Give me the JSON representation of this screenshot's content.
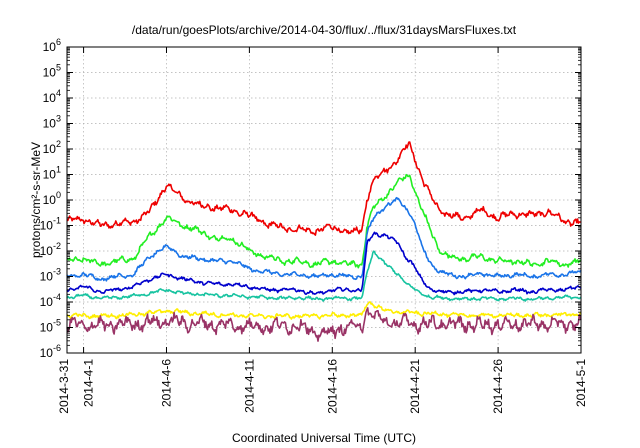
{
  "chart_data": {
    "type": "line",
    "title": "/data/run/goesPlots/archive/2014-04-30/flux/../flux/31daysMarsFluxes.txt",
    "xlabel": "Coordinated Universal Time (UTC)",
    "ylabel": "protons/cm²-s-sr-MeV",
    "yscale": "log",
    "ylim": [
      1e-06,
      1000000.0
    ],
    "xlim": [
      "2014-03-31",
      "2014-05-01"
    ],
    "grid": true,
    "yticks": [
      {
        "value": -6,
        "base": "10",
        "exp": "-6"
      },
      {
        "value": -5,
        "base": "10",
        "exp": "-5"
      },
      {
        "value": -4,
        "base": "10",
        "exp": "-4"
      },
      {
        "value": -3,
        "base": "10",
        "exp": "-3"
      },
      {
        "value": -2,
        "base": "10",
        "exp": "-2"
      },
      {
        "value": -1,
        "base": "10",
        "exp": "-1"
      },
      {
        "value": 0,
        "base": "10",
        "exp": "0"
      },
      {
        "value": 1,
        "base": "10",
        "exp": "1"
      },
      {
        "value": 2,
        "base": "10",
        "exp": "2"
      },
      {
        "value": 3,
        "base": "10",
        "exp": "3"
      },
      {
        "value": 4,
        "base": "10",
        "exp": "4"
      },
      {
        "value": 5,
        "base": "10",
        "exp": "5"
      },
      {
        "value": 6,
        "base": "10",
        "exp": "6"
      }
    ],
    "xticks": [
      {
        "day": 0,
        "label": "2014-3-31"
      },
      {
        "day": 1,
        "label": "2014-4-1"
      },
      {
        "day": 6,
        "label": "2014-4-6"
      },
      {
        "day": 11,
        "label": "2014-4-11"
      },
      {
        "day": 16,
        "label": "2014-4-16"
      },
      {
        "day": 21,
        "label": "2014-4-21"
      },
      {
        "day": 26,
        "label": "2014-4-26"
      },
      {
        "day": 31,
        "label": "2014-5-1"
      }
    ],
    "series": [
      {
        "color": "#ee0000",
        "noise": 0.13,
        "points": [
          [
            0,
            0.15
          ],
          [
            1,
            0.18
          ],
          [
            2,
            0.1
          ],
          [
            3,
            0.12
          ],
          [
            4,
            0.14
          ],
          [
            5,
            0.35
          ],
          [
            6,
            4.0
          ],
          [
            6.5,
            2.0
          ],
          [
            7,
            1.2
          ],
          [
            8,
            0.6
          ],
          [
            9,
            0.5
          ],
          [
            10,
            0.4
          ],
          [
            11,
            0.25
          ],
          [
            12,
            0.12
          ],
          [
            13,
            0.08
          ],
          [
            14,
            0.07
          ],
          [
            15,
            0.06
          ],
          [
            16,
            0.09
          ],
          [
            17,
            0.05
          ],
          [
            17.8,
            0.07
          ],
          [
            18.1,
            1.2
          ],
          [
            18.5,
            6.0
          ],
          [
            19.2,
            15
          ],
          [
            20,
            40
          ],
          [
            20.4,
            120
          ],
          [
            20.7,
            150
          ],
          [
            21,
            40
          ],
          [
            21.5,
            5.0
          ],
          [
            22,
            1.2
          ],
          [
            22.5,
            0.4
          ],
          [
            23,
            0.25
          ],
          [
            24,
            0.2
          ],
          [
            25,
            0.4
          ],
          [
            26,
            0.2
          ],
          [
            27,
            0.3
          ],
          [
            28,
            0.25
          ],
          [
            29,
            0.35
          ],
          [
            30,
            0.15
          ],
          [
            31,
            0.12
          ]
        ]
      },
      {
        "color": "#22ee22",
        "noise": 0.11,
        "points": [
          [
            0,
            0.004
          ],
          [
            1,
            0.005
          ],
          [
            2,
            0.003
          ],
          [
            3,
            0.004
          ],
          [
            4,
            0.005
          ],
          [
            5,
            0.04
          ],
          [
            6,
            0.2
          ],
          [
            6.5,
            0.15
          ],
          [
            7,
            0.1
          ],
          [
            8,
            0.06
          ],
          [
            9,
            0.03
          ],
          [
            10,
            0.03
          ],
          [
            11,
            0.01
          ],
          [
            12,
            0.006
          ],
          [
            13,
            0.004
          ],
          [
            14,
            0.004
          ],
          [
            15,
            0.003
          ],
          [
            16,
            0.004
          ],
          [
            17,
            0.003
          ],
          [
            17.8,
            0.003
          ],
          [
            18.1,
            0.1
          ],
          [
            18.5,
            0.5
          ],
          [
            19.2,
            1.5
          ],
          [
            20,
            5.0
          ],
          [
            20.4,
            8.0
          ],
          [
            20.7,
            9.0
          ],
          [
            21,
            2.0
          ],
          [
            21.5,
            0.3
          ],
          [
            22,
            0.05
          ],
          [
            22.5,
            0.01
          ],
          [
            23,
            0.006
          ],
          [
            24,
            0.005
          ],
          [
            25,
            0.006
          ],
          [
            26,
            0.004
          ],
          [
            27,
            0.004
          ],
          [
            28,
            0.003
          ],
          [
            29,
            0.004
          ],
          [
            30,
            0.003
          ],
          [
            31,
            0.004
          ]
        ]
      },
      {
        "color": "#1a74e8",
        "noise": 0.08,
        "points": [
          [
            0,
            0.001
          ],
          [
            1,
            0.0012
          ],
          [
            2,
            0.0008
          ],
          [
            3,
            0.001
          ],
          [
            4,
            0.0012
          ],
          [
            5,
            0.006
          ],
          [
            6,
            0.015
          ],
          [
            6.5,
            0.01
          ],
          [
            7,
            0.006
          ],
          [
            8,
            0.005
          ],
          [
            9,
            0.004
          ],
          [
            10,
            0.004
          ],
          [
            11,
            0.002
          ],
          [
            12,
            0.0015
          ],
          [
            13,
            0.0012
          ],
          [
            14,
            0.0012
          ],
          [
            15,
            0.001
          ],
          [
            16,
            0.0012
          ],
          [
            17,
            0.001
          ],
          [
            17.8,
            0.001
          ],
          [
            18.1,
            0.05
          ],
          [
            18.5,
            0.2
          ],
          [
            19.2,
            0.6
          ],
          [
            20,
            1.0
          ],
          [
            20.4,
            0.5
          ],
          [
            20.7,
            0.3
          ],
          [
            21,
            0.1
          ],
          [
            21.5,
            0.01
          ],
          [
            22,
            0.003
          ],
          [
            22.5,
            0.0015
          ],
          [
            23,
            0.0012
          ],
          [
            24,
            0.001
          ],
          [
            25,
            0.0013
          ],
          [
            26,
            0.001
          ],
          [
            27,
            0.0012
          ],
          [
            28,
            0.001
          ],
          [
            29,
            0.0012
          ],
          [
            30,
            0.0012
          ],
          [
            31,
            0.0015
          ]
        ]
      },
      {
        "color": "#0000cc",
        "noise": 0.07,
        "points": [
          [
            0,
            0.0003
          ],
          [
            1,
            0.0004
          ],
          [
            2,
            0.00025
          ],
          [
            3,
            0.0003
          ],
          [
            4,
            0.0004
          ],
          [
            5,
            0.0008
          ],
          [
            6,
            0.0012
          ],
          [
            6.5,
            0.001
          ],
          [
            7,
            0.0008
          ],
          [
            8,
            0.0006
          ],
          [
            9,
            0.0005
          ],
          [
            10,
            0.0005
          ],
          [
            11,
            0.0004
          ],
          [
            12,
            0.0003
          ],
          [
            13,
            0.0003
          ],
          [
            14,
            0.0003
          ],
          [
            15,
            0.0002
          ],
          [
            16,
            0.0003
          ],
          [
            17,
            0.0003
          ],
          [
            17.8,
            0.0003
          ],
          [
            18.1,
            0.02
          ],
          [
            18.5,
            0.05
          ],
          [
            19.2,
            0.04
          ],
          [
            20,
            0.02
          ],
          [
            20.4,
            0.006
          ],
          [
            20.7,
            0.004
          ],
          [
            21,
            0.002
          ],
          [
            21.5,
            0.0006
          ],
          [
            22,
            0.0003
          ],
          [
            22.5,
            0.00025
          ],
          [
            23,
            0.00025
          ],
          [
            24,
            0.00025
          ],
          [
            25,
            0.0003
          ],
          [
            26,
            0.00025
          ],
          [
            27,
            0.0003
          ],
          [
            28,
            0.00025
          ],
          [
            29,
            0.0003
          ],
          [
            30,
            0.0003
          ],
          [
            31,
            0.0004
          ]
        ]
      },
      {
        "color": "#17c3a0",
        "noise": 0.06,
        "points": [
          [
            0,
            0.00015
          ],
          [
            1,
            0.00018
          ],
          [
            2,
            0.00014
          ],
          [
            3,
            0.00015
          ],
          [
            4,
            0.00017
          ],
          [
            5,
            0.00022
          ],
          [
            6,
            0.0003
          ],
          [
            7,
            0.00022
          ],
          [
            8,
            0.0002
          ],
          [
            9,
            0.00018
          ],
          [
            10,
            0.00018
          ],
          [
            11,
            0.00016
          ],
          [
            12,
            0.00015
          ],
          [
            13,
            0.00014
          ],
          [
            14,
            0.00015
          ],
          [
            15,
            0.00013
          ],
          [
            16,
            0.00014
          ],
          [
            17,
            0.00014
          ],
          [
            17.8,
            0.00014
          ],
          [
            18.1,
            0.0015
          ],
          [
            18.5,
            0.01
          ],
          [
            19.2,
            0.003
          ],
          [
            20,
            0.0012
          ],
          [
            20.4,
            0.0006
          ],
          [
            20.7,
            0.0004
          ],
          [
            21,
            0.0003
          ],
          [
            21.5,
            0.0002
          ],
          [
            22,
            0.00015
          ],
          [
            23,
            0.00014
          ],
          [
            24,
            0.00013
          ],
          [
            25,
            0.00014
          ],
          [
            26,
            0.00013
          ],
          [
            27,
            0.00014
          ],
          [
            28,
            0.00013
          ],
          [
            29,
            0.00014
          ],
          [
            30,
            0.00015
          ],
          [
            31,
            0.00016
          ]
        ]
      },
      {
        "color": "#ffee00",
        "noise": 0.08,
        "points": [
          [
            0,
            3e-05
          ],
          [
            2,
            2.8e-05
          ],
          [
            4,
            3.2e-05
          ],
          [
            6,
            4.5e-05
          ],
          [
            8,
            3.5e-05
          ],
          [
            10,
            3e-05
          ],
          [
            12,
            2.8e-05
          ],
          [
            14,
            2.8e-05
          ],
          [
            16,
            3e-05
          ],
          [
            17.8,
            3e-05
          ],
          [
            18.1,
            0.0001
          ],
          [
            18.5,
            8e-05
          ],
          [
            19,
            5e-05
          ],
          [
            20,
            4e-05
          ],
          [
            22,
            3.5e-05
          ],
          [
            24,
            3e-05
          ],
          [
            26,
            3e-05
          ],
          [
            28,
            3e-05
          ],
          [
            30,
            3.2e-05
          ],
          [
            31,
            3.5e-05
          ]
        ]
      },
      {
        "color": "#993366",
        "noise": 0.26,
        "points": [
          [
            0,
            1.3e-05
          ],
          [
            2,
            1.2e-05
          ],
          [
            4,
            1.4e-05
          ],
          [
            6,
            1.8e-05
          ],
          [
            8,
            1.4e-05
          ],
          [
            10,
            1.2e-05
          ],
          [
            12,
            1.1e-05
          ],
          [
            14,
            1.2e-05
          ],
          [
            15,
            6e-06
          ],
          [
            16,
            6e-06
          ],
          [
            16.5,
            1e-05
          ],
          [
            17.8,
            1.1e-05
          ],
          [
            18.1,
            5e-05
          ],
          [
            18.5,
            3e-05
          ],
          [
            19,
            1.8e-05
          ],
          [
            20,
            1.5e-05
          ],
          [
            22,
            1.4e-05
          ],
          [
            24,
            1.3e-05
          ],
          [
            26,
            1.3e-05
          ],
          [
            28,
            1.4e-05
          ],
          [
            30,
            1.3e-05
          ],
          [
            31,
            1.5e-05
          ]
        ]
      }
    ]
  }
}
